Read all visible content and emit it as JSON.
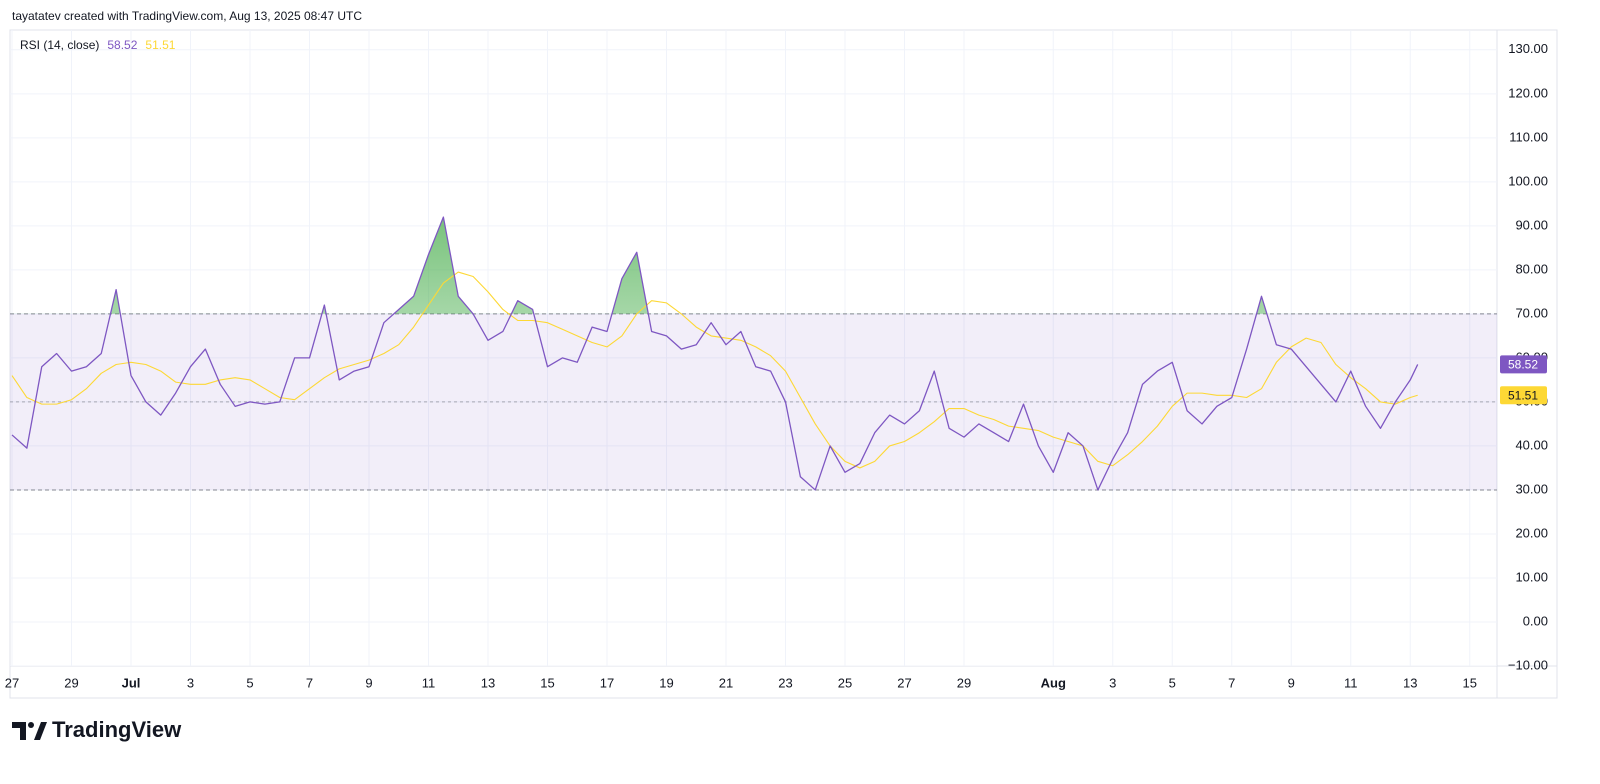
{
  "header": "tayatatev created with TradingView.com, Aug 13, 2025 08:47 UTC",
  "brand": "TradingView",
  "chart_data": {
    "type": "line",
    "title": "RSI (14, close)",
    "x": [
      0,
      0.5,
      1,
      1.5,
      2,
      2.5,
      3,
      3.5,
      4,
      4.5,
      5,
      5.5,
      6,
      6.5,
      7,
      7.5,
      8,
      8.5,
      9,
      9.5,
      10,
      10.5,
      11,
      11.5,
      12,
      12.5,
      13,
      13.5,
      14,
      14.5,
      15,
      15.5,
      16,
      16.5,
      17,
      17.5,
      18,
      18.5,
      19,
      19.5,
      20,
      20.5,
      21,
      21.5,
      22,
      22.5,
      23,
      23.5,
      24,
      24.5,
      25,
      25.5,
      26,
      26.5,
      27,
      27.5,
      28,
      28.5,
      29,
      29.5,
      30,
      30.5,
      31,
      31.5,
      32,
      32.5,
      33,
      33.5,
      34,
      34.5,
      35,
      35.5,
      36,
      36.5,
      37,
      37.5,
      38,
      38.5,
      39,
      39.5,
      40,
      40.5,
      41,
      41.5,
      42,
      42.5,
      43,
      43.5,
      44,
      44.5,
      45,
      45.5,
      46,
      46.5,
      47,
      47.25
    ],
    "series": [
      {
        "color": "#7e57c2",
        "values": [
          42.5,
          39.5,
          58,
          61,
          57,
          58,
          61,
          75.5,
          56,
          50,
          47,
          52,
          58,
          62,
          54,
          49,
          50,
          49.5,
          50,
          60,
          60,
          72,
          55,
          57,
          58,
          68,
          71,
          74,
          83.5,
          92,
          74,
          70,
          64,
          66,
          73,
          71,
          58,
          60,
          59,
          67,
          66,
          78,
          84,
          66,
          65,
          62,
          63,
          68,
          63,
          66,
          58,
          57,
          50,
          33,
          30,
          40,
          34,
          36,
          43,
          47,
          45,
          48,
          57,
          44,
          42,
          45,
          43,
          41,
          49.5,
          40,
          34,
          43,
          40,
          30,
          37,
          43,
          54,
          57,
          59,
          48,
          45,
          49,
          51,
          62,
          74,
          63,
          62,
          58,
          54,
          50,
          57,
          49,
          44,
          50,
          55,
          58.52
        ]
      },
      {
        "color": "#fdd835",
        "values": [
          56,
          51,
          49.5,
          49.5,
          50.5,
          53,
          56.5,
          58.5,
          59,
          58.5,
          57,
          54.5,
          54,
          54,
          55,
          55.5,
          55,
          53,
          51,
          50.5,
          53,
          55.5,
          57.5,
          58.5,
          59.5,
          61,
          63,
          67,
          72,
          77,
          79.5,
          78.5,
          75,
          71,
          68.5,
          68.5,
          68,
          66.5,
          65,
          63.5,
          62.5,
          65,
          70,
          73,
          72.5,
          70,
          67,
          65,
          64.5,
          64,
          62.5,
          60.5,
          57,
          51,
          45,
          40,
          36.5,
          35,
          36.5,
          40,
          41,
          43,
          45.5,
          48.5,
          48.5,
          47,
          46,
          44.5,
          44,
          43.5,
          42,
          41,
          40,
          36.5,
          35.5,
          38,
          41,
          44.5,
          49,
          52,
          52,
          51.5,
          51.5,
          51,
          53,
          59,
          62.5,
          64.5,
          63.5,
          58.5,
          55.5,
          53,
          50,
          49.5,
          51,
          51.51
        ]
      }
    ],
    "xlim": [
      0,
      50
    ],
    "ylim": [
      -10,
      134.5
    ],
    "xticks": [
      {
        "value": 0,
        "label": "27"
      },
      {
        "value": 2,
        "label": "29"
      },
      {
        "value": 4,
        "label": "Jul"
      },
      {
        "value": 6,
        "label": "3"
      },
      {
        "value": 8,
        "label": "5"
      },
      {
        "value": 10,
        "label": "7"
      },
      {
        "value": 12,
        "label": "9"
      },
      {
        "value": 14,
        "label": "11"
      },
      {
        "value": 16,
        "label": "13"
      },
      {
        "value": 18,
        "label": "15"
      },
      {
        "value": 20,
        "label": "17"
      },
      {
        "value": 22,
        "label": "19"
      },
      {
        "value": 24,
        "label": "21"
      },
      {
        "value": 26,
        "label": "23"
      },
      {
        "value": 28,
        "label": "25"
      },
      {
        "value": 30,
        "label": "27"
      },
      {
        "value": 32,
        "label": "29"
      },
      {
        "value": 35,
        "label": "Aug"
      },
      {
        "value": 37,
        "label": "3"
      },
      {
        "value": 39,
        "label": "5"
      },
      {
        "value": 41,
        "label": "7"
      },
      {
        "value": 43,
        "label": "9"
      },
      {
        "value": 45,
        "label": "11"
      },
      {
        "value": 47,
        "label": "13"
      },
      {
        "value": 49,
        "label": "15"
      }
    ],
    "yticks": [
      {
        "value": -10,
        "label": "−10.00"
      },
      {
        "value": 0,
        "label": "0.00"
      },
      {
        "value": 10,
        "label": "10.00"
      },
      {
        "value": 20,
        "label": "20.00"
      },
      {
        "value": 30,
        "label": "30.00"
      },
      {
        "value": 40,
        "label": "40.00"
      },
      {
        "value": 50,
        "label": "50.00"
      },
      {
        "value": 60,
        "label": "60.00"
      },
      {
        "value": 70,
        "label": "70.00"
      },
      {
        "value": 80,
        "label": "80.00"
      },
      {
        "value": 90,
        "label": "90.00"
      },
      {
        "value": 100,
        "label": "100.00"
      },
      {
        "value": 110,
        "label": "110.00"
      },
      {
        "value": 120,
        "label": "120.00"
      },
      {
        "value": 130,
        "label": "130.00"
      }
    ],
    "bands": {
      "upper": 70,
      "middle": 50,
      "lower": 30
    },
    "band_color": "#7e57c2",
    "overbought_color": "#4caf50",
    "grid": true
  }
}
